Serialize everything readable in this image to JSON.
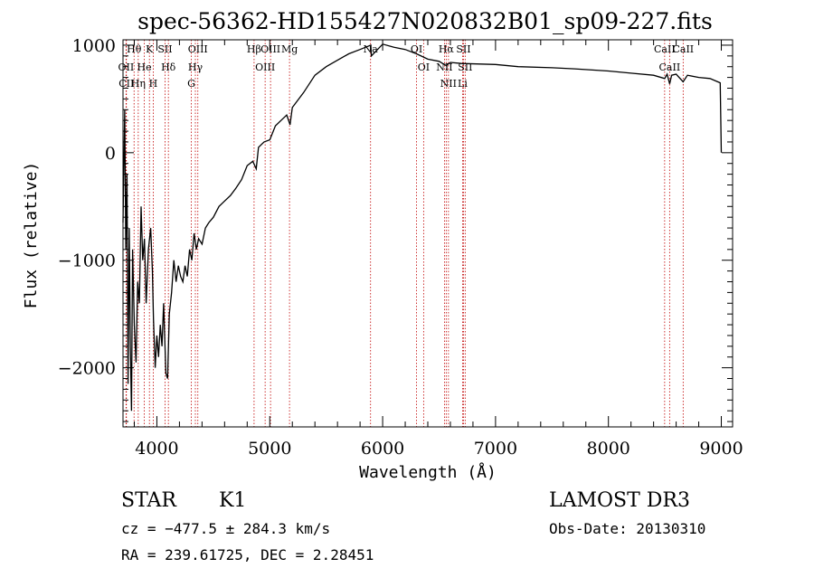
{
  "chart_data": {
    "type": "line",
    "title": "spec-56362-HD155427N020832B01_sp09-227.fits",
    "xlabel": "Wavelength (Å)",
    "ylabel": "Flux (relative)",
    "xlim": [
      3700,
      9100
    ],
    "ylim": [
      -2550,
      1050
    ],
    "xticks": [
      4000,
      5000,
      6000,
      7000,
      8000,
      9000
    ],
    "yticks": [
      -2000,
      -1000,
      0,
      1000
    ],
    "series": [
      {
        "points": [
          [
            3700,
            -650
          ],
          [
            3715,
            400
          ],
          [
            3725,
            -900
          ],
          [
            3735,
            -200
          ],
          [
            3745,
            -2150
          ],
          [
            3755,
            -700
          ],
          [
            3765,
            -1800
          ],
          [
            3775,
            -2400
          ],
          [
            3785,
            -900
          ],
          [
            3800,
            -1600
          ],
          [
            3815,
            -1950
          ],
          [
            3830,
            -1200
          ],
          [
            3845,
            -1400
          ],
          [
            3860,
            -500
          ],
          [
            3875,
            -1000
          ],
          [
            3890,
            -800
          ],
          [
            3905,
            -1400
          ],
          [
            3925,
            -900
          ],
          [
            3945,
            -700
          ],
          [
            3960,
            -1100
          ],
          [
            3970,
            -1550
          ],
          [
            3985,
            -2000
          ],
          [
            4000,
            -1700
          ],
          [
            4015,
            -1900
          ],
          [
            4030,
            -1600
          ],
          [
            4045,
            -1800
          ],
          [
            4060,
            -1400
          ],
          [
            4080,
            -2050
          ],
          [
            4095,
            -2100
          ],
          [
            4110,
            -1500
          ],
          [
            4130,
            -1300
          ],
          [
            4150,
            -1000
          ],
          [
            4170,
            -1200
          ],
          [
            4190,
            -1050
          ],
          [
            4210,
            -1150
          ],
          [
            4230,
            -1200
          ],
          [
            4250,
            -1050
          ],
          [
            4270,
            -1150
          ],
          [
            4290,
            -900
          ],
          [
            4310,
            -1000
          ],
          [
            4330,
            -750
          ],
          [
            4350,
            -900
          ],
          [
            4370,
            -800
          ],
          [
            4400,
            -850
          ],
          [
            4430,
            -700
          ],
          [
            4460,
            -650
          ],
          [
            4500,
            -600
          ],
          [
            4550,
            -500
          ],
          [
            4600,
            -450
          ],
          [
            4650,
            -400
          ],
          [
            4700,
            -330
          ],
          [
            4750,
            -250
          ],
          [
            4800,
            -120
          ],
          [
            4850,
            -80
          ],
          [
            4880,
            -150
          ],
          [
            4900,
            50
          ],
          [
            4950,
            100
          ],
          [
            5000,
            120
          ],
          [
            5050,
            250
          ],
          [
            5100,
            300
          ],
          [
            5150,
            350
          ],
          [
            5180,
            260
          ],
          [
            5200,
            420
          ],
          [
            5300,
            560
          ],
          [
            5400,
            720
          ],
          [
            5500,
            800
          ],
          [
            5600,
            860
          ],
          [
            5700,
            920
          ],
          [
            5800,
            960
          ],
          [
            5895,
            1000
          ],
          [
            5900,
            900
          ],
          [
            6000,
            1010
          ],
          [
            6100,
            980
          ],
          [
            6200,
            960
          ],
          [
            6300,
            920
          ],
          [
            6400,
            870
          ],
          [
            6500,
            850
          ],
          [
            6563,
            810
          ],
          [
            6600,
            840
          ],
          [
            6700,
            830
          ],
          [
            7000,
            820
          ],
          [
            7200,
            800
          ],
          [
            7500,
            790
          ],
          [
            7700,
            780
          ],
          [
            8000,
            760
          ],
          [
            8200,
            740
          ],
          [
            8400,
            720
          ],
          [
            8498,
            690
          ],
          [
            8520,
            730
          ],
          [
            8542,
            640
          ],
          [
            8560,
            720
          ],
          [
            8600,
            730
          ],
          [
            8662,
            660
          ],
          [
            8700,
            720
          ],
          [
            8800,
            700
          ],
          [
            8900,
            690
          ],
          [
            8990,
            650
          ],
          [
            9000,
            0
          ]
        ]
      }
    ],
    "line_markers": [
      {
        "label": "Hθ",
        "wavelength": 3798
      },
      {
        "label": "OII",
        "wavelength": 3727
      },
      {
        "label": "CII",
        "wavelength": 3730
      },
      {
        "label": "Hη",
        "wavelength": 3835
      },
      {
        "label": "He",
        "wavelength": 3889
      },
      {
        "label": "K",
        "wavelength": 3934
      },
      {
        "label": "H",
        "wavelength": 3968
      },
      {
        "label": "SII",
        "wavelength": 4072
      },
      {
        "label": "Hδ",
        "wavelength": 4102
      },
      {
        "label": "OIII",
        "wavelength": 4363
      },
      {
        "label": "Hγ",
        "wavelength": 4341
      },
      {
        "label": "G",
        "wavelength": 4305
      },
      {
        "label": "Hβ",
        "wavelength": 4861
      },
      {
        "label": "OIII",
        "wavelength": 4959
      },
      {
        "label": "OIII",
        "wavelength": 5007
      },
      {
        "label": "Mg",
        "wavelength": 5175
      },
      {
        "label": "Na",
        "wavelength": 5893
      },
      {
        "label": "OI",
        "wavelength": 6300
      },
      {
        "label": "OI",
        "wavelength": 6363
      },
      {
        "label": "Hα",
        "wavelength": 6563
      },
      {
        "label": "NII",
        "wavelength": 6548
      },
      {
        "label": "NII",
        "wavelength": 6583
      },
      {
        "label": "SII",
        "wavelength": 6716
      },
      {
        "label": "SII",
        "wavelength": 6731
      },
      {
        "label": "Li",
        "wavelength": 6708
      },
      {
        "label": "CaII",
        "wavelength": 8498
      },
      {
        "label": "CaII",
        "wavelength": 8542
      },
      {
        "label": "CaII",
        "wavelength": 8662
      }
    ]
  },
  "info": {
    "object_class": "STAR",
    "subclass": "K1",
    "survey": "LAMOST DR3",
    "cz": "cz = −477.5 ± 284.3 km/s",
    "obs_date": "Obs-Date: 20130310",
    "coords": "RA = 239.61725, DEC =   2.28451"
  },
  "colors": {
    "line_marker": "#c00000",
    "spectrum": "#000000"
  }
}
